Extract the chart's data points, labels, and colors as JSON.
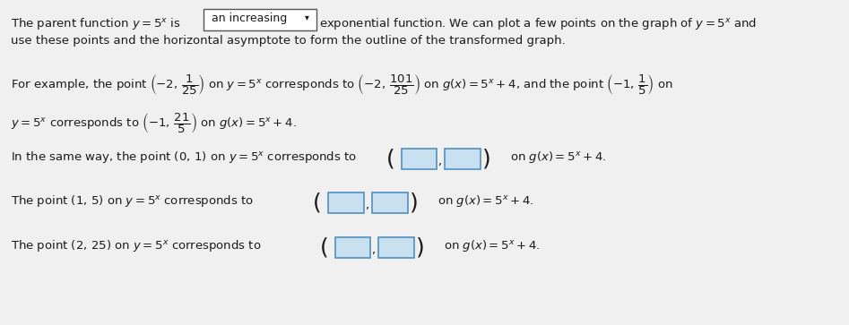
{
  "background_color": "#f0f0f0",
  "text_color": "#1a1a1a",
  "title_line1": "The parent function $y=5^x$ is",
  "dropdown_text": "an increasing",
  "title_line1_after": "exponential function. We can plot a few points on the graph of $y=5^x$ and",
  "title_line2": "use these points and the horizontal asymptote to form the outline of the transformed graph.",
  "line3": "For example, the point $\\left(-2,\\,\\dfrac{1}{25}\\right)$ on $y=5^x$ corresponds to $\\left(-2,\\,\\dfrac{101}{25}\\right)$ on $g(x)=5^x+4$, and the point $\\left(-1,\\,\\dfrac{1}{5}\\right)$ on",
  "line4": "$y=5^x$ corresponds to $\\left(-1,\\,\\dfrac{21}{5}\\right)$ on $g(x)=5^x+4$.",
  "line5": "In the same way, the point $(0,\\,1)$ on $y=5^x$ corresponds to",
  "line5_end": "on $g(x)=5^x+4$.",
  "line6": "The point $(1,\\,5)$ on $y=5^x$ corresponds to",
  "line6_end": "on $g(x)=5^x+4$.",
  "line7": "The point $(2,\\,25)$ on $y=5^x$ corresponds to",
  "line7_end": "on $g(x)=5^x+4$.",
  "box_color": "#c8e0f0",
  "box_border": "#5090c0",
  "dropdown_box_color": "#ffffff",
  "dropdown_border": "#555555"
}
